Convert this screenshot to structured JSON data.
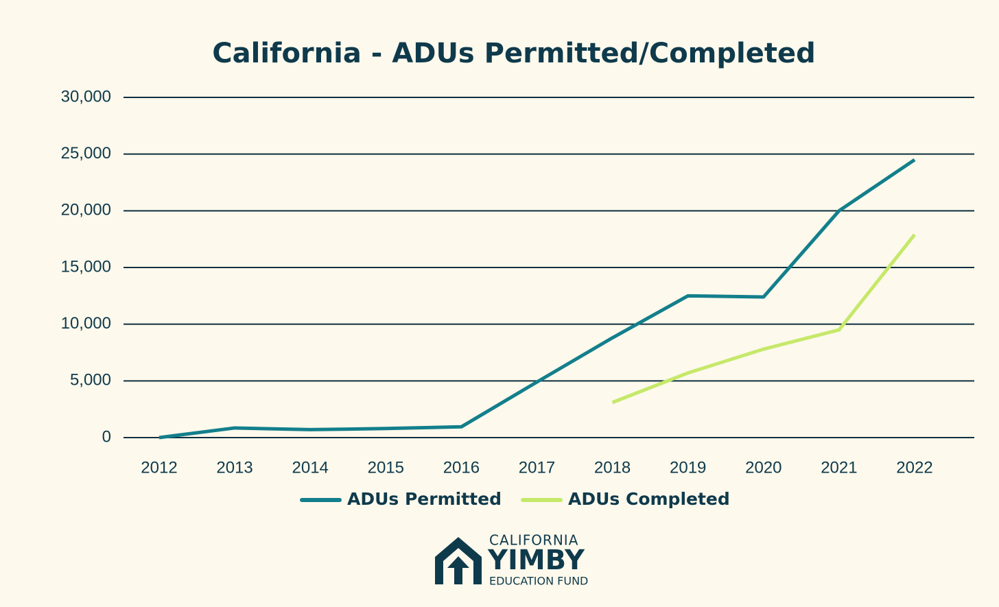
{
  "chart_data": {
    "type": "line",
    "title": "California - ADUs Permitted/Completed",
    "categories": [
      "2012",
      "2013",
      "2014",
      "2015",
      "2016",
      "2017",
      "2018",
      "2019",
      "2020",
      "2021",
      "2022"
    ],
    "series": [
      {
        "name": "ADUs Permitted",
        "color": "#137f8c",
        "values": [
          0,
          850,
          700,
          800,
          950,
          4900,
          8800,
          12500,
          12400,
          20000,
          24500
        ]
      },
      {
        "name": "ADUs Completed",
        "color": "#c6e86a",
        "values": [
          null,
          null,
          null,
          null,
          null,
          null,
          3100,
          5700,
          7800,
          9500,
          17900
        ]
      }
    ],
    "ylim": [
      0,
      30000
    ],
    "yticks": [
      0,
      {
        "value": 5000,
        "label": "5,000"
      },
      {
        "value": 10000,
        "label": "10,000"
      },
      {
        "value": 15000,
        "label": "15,000"
      },
      {
        "value": 20000,
        "label": "20,000"
      },
      {
        "value": 25000,
        "label": "25,000"
      },
      {
        "value": 30000,
        "label": "30,000"
      }
    ],
    "grid": true
  },
  "logo": {
    "line1": "CALIFORNIA",
    "line2": "YIMBY",
    "line3": "EDUCATION FUND"
  }
}
